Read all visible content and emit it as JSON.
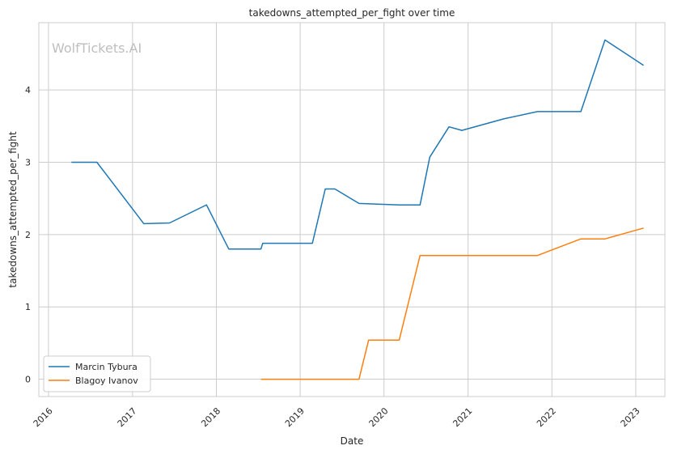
{
  "chart_data": {
    "type": "line",
    "title": "takedowns_attempted_per_fight over time",
    "xlabel": "Date",
    "ylabel": "takedowns_attempted_per_fight",
    "watermark": "WolfTickets.AI",
    "xlim": [
      "2015-11-20",
      "2023-05-08"
    ],
    "ylim": [
      -0.24,
      4.93
    ],
    "x_ticks": [
      "2016",
      "2017",
      "2018",
      "2019",
      "2020",
      "2021",
      "2022",
      "2023"
    ],
    "y_ticks": [
      0,
      1,
      2,
      3,
      4
    ],
    "grid": true,
    "legend_position": "lower-left",
    "series": [
      {
        "name": "Marcin Tybura",
        "color": "#1f77b4",
        "points": [
          [
            "2016-04-10",
            3.0
          ],
          [
            "2016-07-30",
            3.0
          ],
          [
            "2017-02-19",
            2.15
          ],
          [
            "2017-06-11",
            2.16
          ],
          [
            "2017-11-19",
            2.41
          ],
          [
            "2018-02-24",
            1.8
          ],
          [
            "2018-07-14",
            1.8
          ],
          [
            "2018-07-22",
            1.88
          ],
          [
            "2019-02-23",
            1.88
          ],
          [
            "2019-04-20",
            2.63
          ],
          [
            "2019-06-01",
            2.63
          ],
          [
            "2019-09-14",
            2.43
          ],
          [
            "2020-03-07",
            2.41
          ],
          [
            "2020-06-06",
            2.41
          ],
          [
            "2020-07-18",
            3.07
          ],
          [
            "2020-10-10",
            3.49
          ],
          [
            "2020-12-05",
            3.44
          ],
          [
            "2021-06-05",
            3.6
          ],
          [
            "2021-10-30",
            3.7
          ],
          [
            "2022-05-07",
            3.7
          ],
          [
            "2022-08-20",
            4.69
          ],
          [
            "2023-02-04",
            4.34
          ]
        ]
      },
      {
        "name": "Blagoy Ivanov",
        "color": "#ff7f0e",
        "points": [
          [
            "2018-07-14",
            0.0
          ],
          [
            "2019-09-14",
            0.0
          ],
          [
            "2019-10-26",
            0.54
          ],
          [
            "2020-03-07",
            0.54
          ],
          [
            "2020-06-06",
            1.71
          ],
          [
            "2021-10-30",
            1.71
          ],
          [
            "2022-05-07",
            1.94
          ],
          [
            "2022-08-20",
            1.94
          ],
          [
            "2023-02-04",
            2.09
          ]
        ]
      }
    ]
  }
}
